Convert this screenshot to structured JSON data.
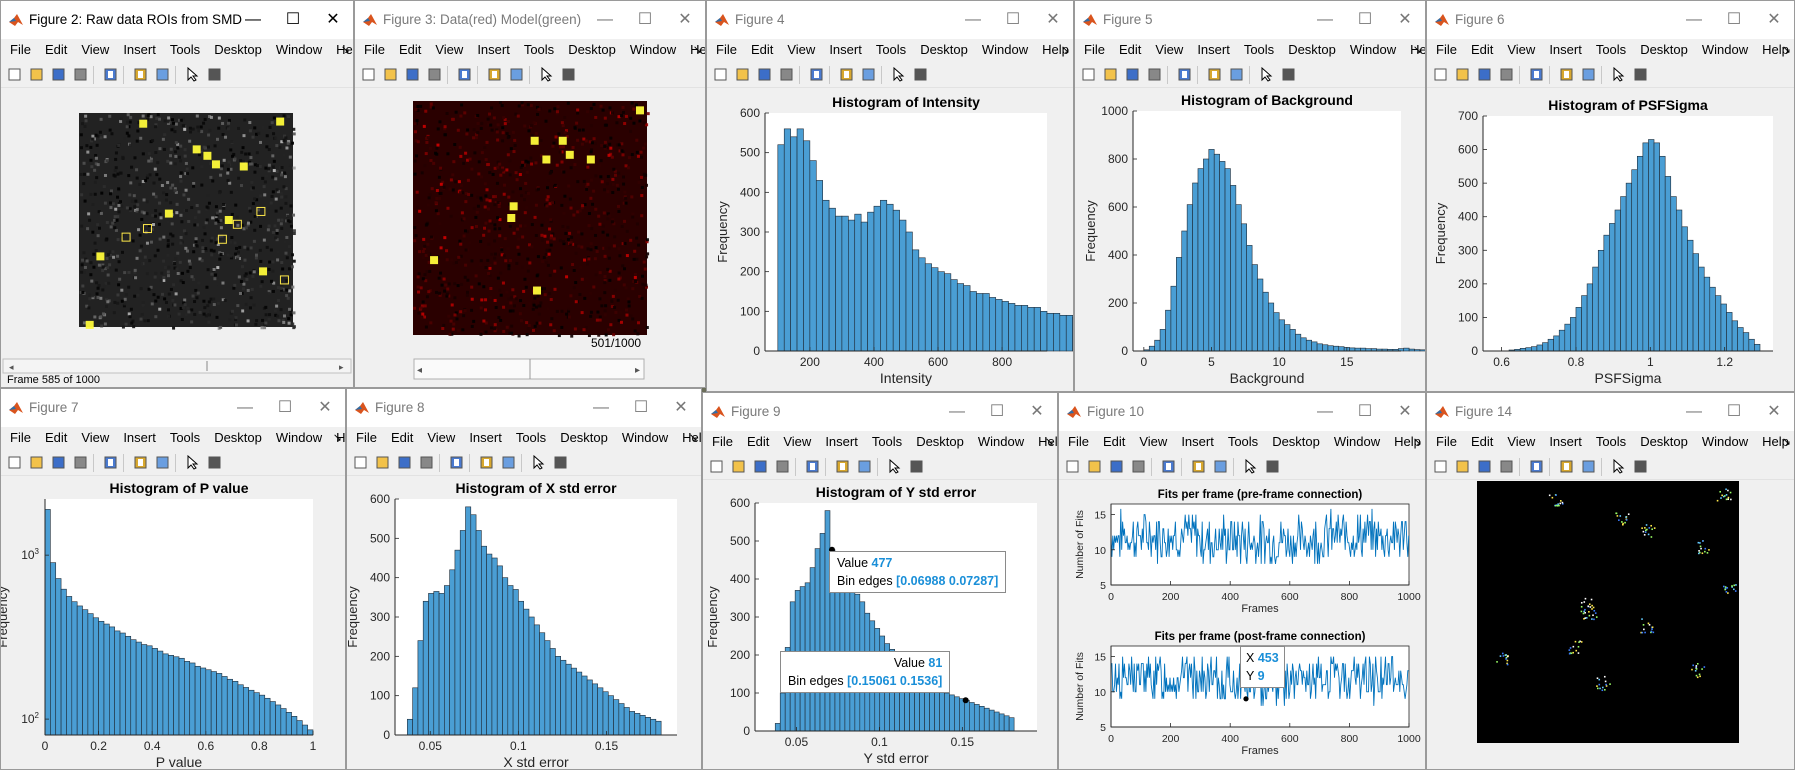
{
  "menu_items": [
    "File",
    "Edit",
    "View",
    "Insert",
    "Tools",
    "Desktop",
    "Window",
    "Help"
  ],
  "windows": [
    {
      "id": "fig2",
      "title": "Figure 2: Raw data ROIs from SMD",
      "active": true,
      "status": "Frame 585 of 1000"
    },
    {
      "id": "fig3",
      "title": "Figure 3: Data(red) Model(green)",
      "active": false,
      "counter": "501/1000"
    },
    {
      "id": "fig4",
      "title": "Figure 4",
      "active": false
    },
    {
      "id": "fig5",
      "title": "Figure 5",
      "active": false
    },
    {
      "id": "fig6",
      "title": "Figure 6",
      "active": false
    },
    {
      "id": "fig7",
      "title": "Figure 7",
      "active": false
    },
    {
      "id": "fig8",
      "title": "Figure 8",
      "active": false
    },
    {
      "id": "fig9",
      "title": "Figure 9",
      "active": false
    },
    {
      "id": "fig10",
      "title": "Figure 10",
      "active": false
    },
    {
      "id": "fig14",
      "title": "Figure 14",
      "active": false
    }
  ],
  "tooltips": {
    "fig9_a": {
      "value_label": "Value",
      "value": "477",
      "edges_label": "Bin edges",
      "edges": "[0.06988 0.07287]"
    },
    "fig9_b": {
      "value_label": "Value",
      "value": "81",
      "edges_label": "Bin edges",
      "edges": "[0.15061 0.1536]"
    },
    "fig10": {
      "x_label": "X",
      "x": "453",
      "y_label": "Y",
      "y": "9"
    }
  },
  "colors": {
    "bar": "#4a9ed4",
    "line": "#0072bd",
    "accent": "#1a8fd8"
  },
  "chart_data": [
    {
      "id": "fig4",
      "type": "bar",
      "title": "Histogram of Intensity",
      "xlabel": "Intensity",
      "ylabel": "Frequency",
      "xlim": [
        60,
        940
      ],
      "ylim": [
        0,
        600
      ],
      "xticks": [
        200,
        400,
        600,
        800
      ],
      "yticks": [
        0,
        100,
        200,
        300,
        400,
        500,
        600
      ],
      "bin_start": 100,
      "bin_width": 20,
      "values": [
        520,
        560,
        540,
        560,
        530,
        480,
        430,
        380,
        360,
        340,
        340,
        330,
        345,
        325,
        350,
        365,
        380,
        370,
        355,
        330,
        300,
        255,
        235,
        220,
        210,
        200,
        195,
        180,
        170,
        165,
        150,
        145,
        145,
        135,
        130,
        125,
        120,
        115,
        115,
        110,
        110,
        100,
        95,
        95,
        90,
        90,
        85,
        80,
        80,
        75,
        75,
        75,
        70,
        65,
        60,
        55,
        60,
        55,
        50,
        45,
        40,
        25,
        15
      ]
    },
    {
      "id": "fig5",
      "type": "bar",
      "title": "Histogram of Background",
      "xlabel": "Background",
      "ylabel": "Frequency",
      "xlim": [
        -0.8,
        19
      ],
      "ylim": [
        0,
        1000
      ],
      "xticks": [
        0,
        5,
        10,
        15
      ],
      "yticks": [
        0,
        200,
        400,
        600,
        800,
        1000
      ],
      "bin_start": 0,
      "bin_width": 0.4,
      "values": [
        5,
        20,
        45,
        90,
        170,
        270,
        390,
        500,
        610,
        700,
        760,
        800,
        840,
        820,
        790,
        760,
        690,
        610,
        530,
        440,
        360,
        300,
        245,
        200,
        160,
        130,
        110,
        90,
        70,
        55,
        45,
        38,
        30,
        26,
        22,
        20,
        18,
        15,
        13,
        12,
        12,
        10,
        10,
        8,
        8,
        7,
        7,
        10,
        12,
        8,
        6,
        5,
        4,
        3,
        5,
        8,
        10,
        12,
        15,
        20
      ]
    },
    {
      "id": "fig6",
      "type": "bar",
      "title": "Histogram of PSFSigma",
      "xlabel": "PSFSigma",
      "ylabel": "Frequency",
      "xlim": [
        0.55,
        1.33
      ],
      "ylim": [
        0,
        700
      ],
      "xticks": [
        0.6,
        0.8,
        1,
        1.2
      ],
      "yticks": [
        0,
        100,
        200,
        300,
        400,
        500,
        600,
        700
      ],
      "bin_start": 0.62,
      "bin_width": 0.015,
      "values": [
        3,
        5,
        8,
        10,
        13,
        18,
        25,
        35,
        45,
        62,
        80,
        100,
        130,
        165,
        200,
        250,
        300,
        345,
        380,
        420,
        460,
        500,
        540,
        580,
        620,
        630,
        620,
        580,
        520,
        460,
        420,
        370,
        330,
        290,
        250,
        220,
        190,
        165,
        140,
        115,
        90,
        70,
        55,
        35,
        20
      ]
    },
    {
      "id": "fig7",
      "type": "bar",
      "title": "Histogram of P value",
      "xlabel": "P value",
      "ylabel": "Frequency",
      "xlim": [
        0,
        1
      ],
      "ylim": [
        80,
        2200
      ],
      "yscale": "log",
      "xticks": [
        0,
        0.2,
        0.4,
        0.6,
        0.8,
        1
      ],
      "ytick_labels": [
        "10^2",
        "10^3"
      ],
      "bin_start": 0,
      "bin_width": 0.02,
      "values": [
        1900,
        900,
        720,
        620,
        560,
        520,
        490,
        465,
        440,
        415,
        395,
        380,
        365,
        345,
        335,
        320,
        305,
        295,
        285,
        280,
        270,
        260,
        250,
        245,
        240,
        235,
        225,
        220,
        210,
        205,
        200,
        195,
        190,
        182,
        175,
        170,
        162,
        156,
        150,
        145,
        140,
        134,
        128,
        122,
        116,
        110,
        104,
        98,
        92,
        86
      ]
    },
    {
      "id": "fig8",
      "type": "bar",
      "title": "Histogram of X std error",
      "xlabel": "X std error",
      "ylabel": "Frequency",
      "xlim": [
        0.03,
        0.19
      ],
      "ylim": [
        0,
        600
      ],
      "xticks": [
        0.05,
        0.1,
        0.15
      ],
      "yticks": [
        0,
        100,
        200,
        300,
        400,
        500,
        600
      ],
      "bin_start": 0.037,
      "bin_width": 0.003,
      "values": [
        40,
        120,
        240,
        340,
        360,
        365,
        360,
        380,
        420,
        470,
        520,
        580,
        560,
        520,
        480,
        460,
        450,
        430,
        400,
        380,
        370,
        340,
        320,
        300,
        280,
        260,
        240,
        220,
        200,
        190,
        180,
        170,
        160,
        150,
        140,
        130,
        120,
        110,
        100,
        90,
        80,
        70,
        60,
        55,
        50,
        45,
        40,
        35
      ]
    },
    {
      "id": "fig9",
      "type": "bar",
      "title": "Histogram of Y std error",
      "xlabel": "Y std error",
      "ylabel": "Frequency",
      "xlim": [
        0.025,
        0.195
      ],
      "ylim": [
        0,
        600
      ],
      "xticks": [
        0.05,
        0.1,
        0.15
      ],
      "yticks": [
        0,
        100,
        200,
        300,
        400,
        500,
        600
      ],
      "bin_start": 0.0372,
      "bin_width": 0.003,
      "values": [
        20,
        100,
        220,
        340,
        370,
        380,
        390,
        430,
        480,
        520,
        580,
        477,
        450,
        440,
        410,
        380,
        360,
        340,
        310,
        290,
        270,
        250,
        230,
        215,
        200,
        190,
        175,
        160,
        150,
        140,
        130,
        120,
        115,
        110,
        100,
        95,
        90,
        85,
        81,
        75,
        70,
        65,
        60,
        55,
        50,
        45,
        40,
        35
      ]
    },
    {
      "id": "fig10_top",
      "type": "line",
      "title": "Fits per frame (pre-frame connection)",
      "xlabel": "Frames",
      "ylabel": "Number of Fits",
      "xlim": [
        0,
        1000
      ],
      "ylim": [
        5,
        16.5
      ],
      "xticks": [
        0,
        200,
        400,
        600,
        800,
        1000
      ],
      "yticks": [
        5,
        10,
        15
      ],
      "seed": 7
    },
    {
      "id": "fig10_bot",
      "type": "line",
      "title": "Fits per frame (post-frame connection)",
      "xlabel": "Frames",
      "ylabel": "Number of Fits",
      "xlim": [
        0,
        1000
      ],
      "ylim": [
        5,
        16.5
      ],
      "xticks": [
        0,
        200,
        400,
        600,
        800,
        1000
      ],
      "yticks": [
        5,
        10,
        15
      ],
      "seed": 13
    }
  ]
}
